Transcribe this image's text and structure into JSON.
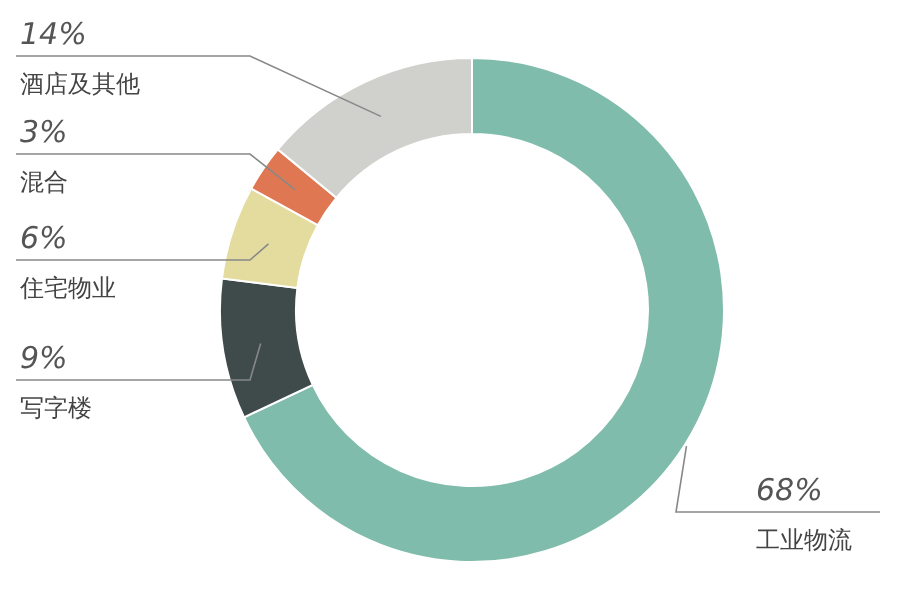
{
  "chart_data": {
    "type": "donut",
    "categories": [
      "工业物流",
      "写字楼",
      "住宅物业",
      "混合",
      "酒店及其他"
    ],
    "values": [
      68,
      9,
      6,
      3,
      14
    ],
    "value_labels": [
      "68%",
      "9%",
      "6%",
      "3%",
      "14%"
    ],
    "colors": [
      "#80bcab",
      "#3e4b4a",
      "#e3dc9e",
      "#df7852",
      "#d0d0cd"
    ]
  }
}
